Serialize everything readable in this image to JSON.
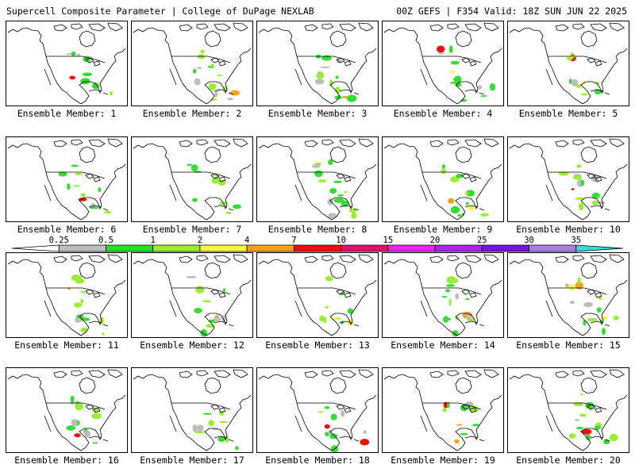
{
  "header": {
    "left": "Supercell Composite Parameter | College of DuPage NEXLAB",
    "right": "00Z GEFS | F354 Valid: 18Z SUN JUN 22 2025"
  },
  "panel_label_prefix": "Ensemble Member: ",
  "members": [
    1,
    2,
    3,
    4,
    5,
    6,
    7,
    8,
    9,
    10,
    11,
    12,
    13,
    14,
    15,
    16,
    17,
    18,
    19,
    20
  ],
  "colorbar": {
    "levels": [
      "0.25",
      "0.5",
      "1",
      "2",
      "4",
      "7",
      "10",
      "15",
      "20",
      "25",
      "30",
      "35"
    ],
    "colors": [
      "#ffffff",
      "#bdbdbd",
      "#22e022",
      "#9aee2a",
      "#f6f640",
      "#f7a21a",
      "#ee1010",
      "#e2106e",
      "#ee22ee",
      "#aa22ee",
      "#7711dd",
      "#a880e0",
      "#33dddd"
    ]
  },
  "colors": {
    "coast": "#000000",
    "spc_light": "#bdbdbd",
    "spc_green": "#33dd33",
    "spc_lime": "#99ee33",
    "spc_yellow": "#f5f542",
    "spc_orange": "#f7a21a",
    "spc_red": "#ee1010"
  }
}
